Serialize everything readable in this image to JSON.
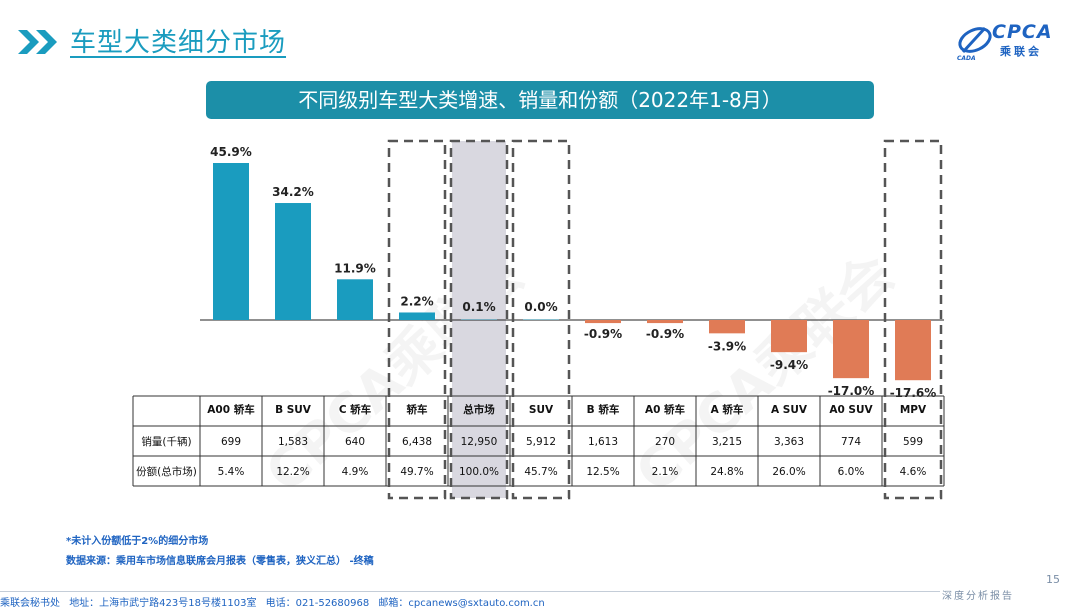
{
  "header": {
    "title": "车型大类细分市场",
    "logo_text": "CPCA",
    "logo_sub": "乘联会",
    "logo_mark": "CADA"
  },
  "banner": {
    "text": "不同级别车型大类增速、销量和份额（2022年1-8月）"
  },
  "watermark": "CPCA乘联会",
  "chart_data": {
    "type": "bar",
    "title": "不同级别车型大类增速、销量和份额（2022年1-8月）",
    "categories": [
      "A00 轿车",
      "B SUV",
      "C 轿车",
      "轿车",
      "总市场",
      "SUV",
      "B 轿车",
      "A0 轿车",
      "A 轿车",
      "A SUV",
      "A0 SUV",
      "MPV"
    ],
    "values": [
      45.9,
      34.2,
      11.9,
      2.2,
      0.1,
      0.0,
      -0.9,
      -0.9,
      -3.9,
      -9.4,
      -17.0,
      -17.6
    ],
    "value_labels": [
      "45.9%",
      "34.2%",
      "11.9%",
      "2.2%",
      "0.1%",
      "0.0%",
      "-0.9%",
      "-0.9%",
      "-3.9%",
      "-9.4%",
      "-17.0%",
      "-17.6%"
    ],
    "unit": "%",
    "ylim": [
      -17.6,
      45.9
    ],
    "highlighted": [
      "轿车",
      "总市场",
      "SUV",
      "MPV"
    ],
    "colors": {
      "positive": "#1a9cbf",
      "negative": "#e07b56",
      "total_highlight": "#d9d8e0"
    },
    "table": {
      "rows": [
        {
          "label": "销量(千辆)",
          "values": [
            "699",
            "1,583",
            "640",
            "6,438",
            "12,950",
            "5,912",
            "1,613",
            "270",
            "3,215",
            "3,363",
            "774",
            "599"
          ]
        },
        {
          "label": "份额(总市场)",
          "values": [
            "5.4%",
            "12.2%",
            "4.9%",
            "49.7%",
            "100.0%",
            "45.7%",
            "12.5%",
            "2.1%",
            "24.8%",
            "26.0%",
            "6.0%",
            "4.6%"
          ]
        }
      ]
    }
  },
  "notes": {
    "note1": "*未计入份额低于2%的细分市场",
    "note2": "数据来源：乘用车市场信息联席会月报表（零售表，狭义汇总） -终稿"
  },
  "footer": {
    "org": "乘联会秘书处",
    "address": "地址：上海市武宁路423号18号楼1103室",
    "phone": "电话：021-52680968",
    "email": "邮箱：cpcanews@sxtauto.com.cn",
    "page_number": "15",
    "report_label": "深度分析报告"
  }
}
